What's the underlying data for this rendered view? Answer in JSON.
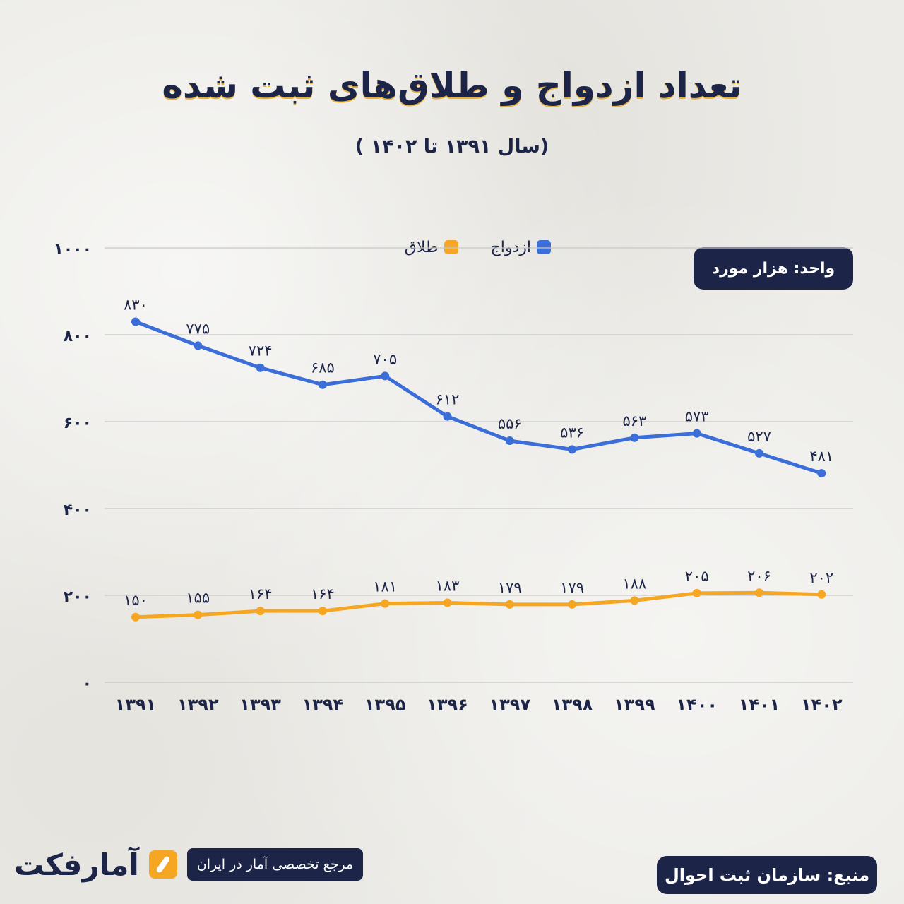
{
  "title": "تعداد ازدواج و طلاق‌های ثبت شده",
  "subtitle": "(سال ۱۳۹۱ تا ۱۴۰۲ )",
  "unit_label": "واحد: هزار مورد",
  "brand": {
    "name": "آمارفکت",
    "tagline": "مرجع تخصصی آمار در ایران"
  },
  "source_label": "منبع: سازمان ثبت احوال",
  "colors": {
    "marriage": "#3b6ed8",
    "divorce": "#f5a623",
    "navy": "#1c2447",
    "grid": "#c9c8c2"
  },
  "chart_data": {
    "type": "line",
    "title": "تعداد ازدواج و طلاق‌های ثبت شده",
    "subtitle": "(سال ۱۳۹۱ تا ۱۴۰۲ )",
    "x": [
      "۱۳۹۱",
      "۱۳۹۲",
      "۱۳۹۳",
      "۱۳۹۴",
      "۱۳۹۵",
      "۱۳۹۶",
      "۱۳۹۷",
      "۱۳۹۸",
      "۱۳۹۹",
      "۱۴۰۰",
      "۱۴۰۱",
      "۱۴۰۲"
    ],
    "series": [
      {
        "name": "ازدواج",
        "values": [
          830,
          775,
          724,
          685,
          705,
          612,
          556,
          536,
          563,
          573,
          527,
          481
        ],
        "labels": [
          "۸۳۰",
          "۷۷۵",
          "۷۲۴",
          "۶۸۵",
          "۷۰۵",
          "۶۱۲",
          "۵۵۶",
          "۵۳۶",
          "۵۶۳",
          "۵۷۳",
          "۵۲۷",
          "۴۸۱"
        ]
      },
      {
        "name": "طلاق",
        "values": [
          150,
          155,
          164,
          164,
          181,
          183,
          179,
          179,
          188,
          205,
          206,
          202
        ],
        "labels": [
          "۱۵۰",
          "۱۵۵",
          "۱۶۴",
          "۱۶۴",
          "۱۸۱",
          "۱۸۳",
          "۱۷۹",
          "۱۷۹",
          "۱۸۸",
          "۲۰۵",
          "۲۰۶",
          "۲۰۲"
        ]
      }
    ],
    "ylim": [
      0,
      1000
    ],
    "yticks": [
      0,
      200,
      400,
      600,
      800,
      1000
    ],
    "ytick_labels": [
      "۰",
      "۲۰۰",
      "۴۰۰",
      "۶۰۰",
      "۸۰۰",
      "۱۰۰۰"
    ],
    "grid": true,
    "legend": "top-center",
    "xlabel": "",
    "ylabel": ""
  }
}
